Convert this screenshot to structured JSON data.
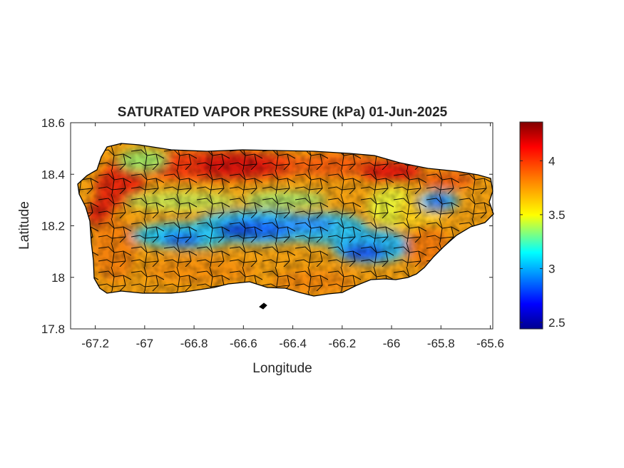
{
  "title": "SATURATED VAPOR PRESSURE (kPa) 01-Jun-2025",
  "map": {
    "region": "Puerto Rico",
    "variable_units": "kPa",
    "colormap": "jet",
    "background": "#ffffff",
    "boundary_color": "#000000"
  },
  "axes": {
    "xlabel": "Longitude",
    "ylabel": "Latitude",
    "xlim": [
      -67.3,
      -65.59
    ],
    "ylim": [
      17.8,
      18.6
    ],
    "xticks": [
      -67.2,
      -67,
      -66.8,
      -66.6,
      -66.4,
      -66.2,
      -66,
      -65.8,
      -65.6
    ],
    "xtick_labels": [
      "-67.2",
      "-67",
      "-66.8",
      "-66.6",
      "-66.4",
      "-66.2",
      "-66",
      "-65.8",
      "-65.6"
    ],
    "yticks": [
      17.8,
      18,
      18.2,
      18.4,
      18.6
    ],
    "ytick_labels": [
      "17.8",
      "18",
      "18.2",
      "18.4",
      "18.6"
    ]
  },
  "colorbar": {
    "range": [
      2.44,
      4.36
    ],
    "ticks": [
      2.5,
      3,
      3.5,
      4
    ],
    "tick_labels": [
      "2.5",
      "3",
      "3.5",
      "4"
    ],
    "colors": [
      "#00008f",
      "#0000ff",
      "#00ffff",
      "#ffff00",
      "#ff8000",
      "#ff0000",
      "#800000"
    ]
  }
}
